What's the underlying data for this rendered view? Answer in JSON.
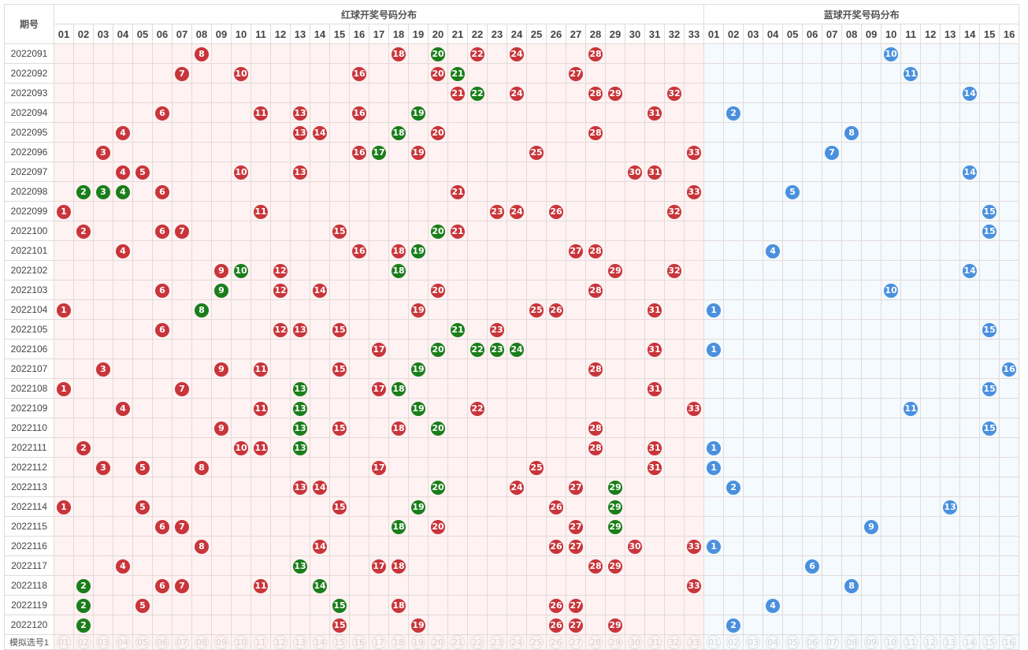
{
  "header": {
    "period_label": "期号",
    "red_title": "红球开奖号码分布",
    "blue_title": "蓝球开奖号码分布"
  },
  "red_numbers": [
    "01",
    "02",
    "03",
    "04",
    "05",
    "06",
    "07",
    "08",
    "09",
    "10",
    "11",
    "12",
    "13",
    "14",
    "15",
    "16",
    "17",
    "18",
    "19",
    "20",
    "21",
    "22",
    "23",
    "24",
    "25",
    "26",
    "27",
    "28",
    "29",
    "30",
    "31",
    "32",
    "33"
  ],
  "blue_numbers": [
    "01",
    "02",
    "03",
    "04",
    "05",
    "06",
    "07",
    "08",
    "09",
    "10",
    "11",
    "12",
    "13",
    "14",
    "15",
    "16"
  ],
  "colors": {
    "red_ball": "#c8353a",
    "repeat_ball": "#1a7e1a",
    "blue_ball": "#4a90de"
  },
  "draws": [
    {
      "period": "2022091",
      "red": [
        8,
        18,
        20,
        22,
        24,
        28
      ],
      "green": [
        20
      ],
      "blue": 10
    },
    {
      "period": "2022092",
      "red": [
        7,
        10,
        16,
        20,
        21,
        27
      ],
      "green": [
        21
      ],
      "blue": 11
    },
    {
      "period": "2022093",
      "red": [
        21,
        22,
        24,
        28,
        29,
        32
      ],
      "green": [
        22
      ],
      "blue": 14
    },
    {
      "period": "2022094",
      "red": [
        6,
        11,
        13,
        16,
        19,
        31
      ],
      "green": [
        19
      ],
      "blue": 2
    },
    {
      "period": "2022095",
      "red": [
        4,
        13,
        14,
        18,
        20,
        28
      ],
      "green": [
        18
      ],
      "blue": 8
    },
    {
      "period": "2022096",
      "red": [
        3,
        16,
        17,
        19,
        25,
        33
      ],
      "green": [
        17
      ],
      "blue": 7
    },
    {
      "period": "2022097",
      "red": [
        4,
        5,
        10,
        13,
        30,
        31
      ],
      "green": [],
      "blue": 14
    },
    {
      "period": "2022098",
      "red": [
        2,
        3,
        4,
        6,
        21,
        33
      ],
      "green": [
        2,
        3,
        4
      ],
      "blue": 5
    },
    {
      "period": "2022099",
      "red": [
        1,
        11,
        23,
        24,
        26,
        32
      ],
      "green": [],
      "blue": 15
    },
    {
      "period": "2022100",
      "red": [
        2,
        6,
        7,
        15,
        20,
        21
      ],
      "green": [
        20
      ],
      "blue": 15
    },
    {
      "period": "2022101",
      "red": [
        4,
        16,
        18,
        19,
        27,
        28
      ],
      "green": [
        19
      ],
      "blue": 4
    },
    {
      "period": "2022102",
      "red": [
        9,
        10,
        12,
        18,
        29,
        32
      ],
      "green": [
        10,
        18
      ],
      "blue": 14
    },
    {
      "period": "2022103",
      "red": [
        6,
        9,
        12,
        14,
        20,
        28
      ],
      "green": [
        9
      ],
      "blue": 10
    },
    {
      "period": "2022104",
      "red": [
        1,
        8,
        19,
        25,
        26,
        31
      ],
      "green": [
        8
      ],
      "blue": 1
    },
    {
      "period": "2022105",
      "red": [
        6,
        12,
        13,
        15,
        21,
        23
      ],
      "green": [
        21
      ],
      "blue": 15
    },
    {
      "period": "2022106",
      "red": [
        17,
        20,
        22,
        23,
        24,
        31
      ],
      "green": [
        20,
        22,
        23,
        24
      ],
      "blue": 1
    },
    {
      "period": "2022107",
      "red": [
        3,
        9,
        11,
        15,
        19,
        28
      ],
      "green": [
        19
      ],
      "blue": 16
    },
    {
      "period": "2022108",
      "red": [
        1,
        7,
        13,
        17,
        18,
        31
      ],
      "green": [
        13,
        18
      ],
      "blue": 15
    },
    {
      "period": "2022109",
      "red": [
        4,
        11,
        13,
        19,
        22,
        33
      ],
      "green": [
        13,
        19
      ],
      "blue": 11
    },
    {
      "period": "2022110",
      "red": [
        9,
        13,
        15,
        18,
        20,
        28
      ],
      "green": [
        13,
        20
      ],
      "blue": 15
    },
    {
      "period": "2022111",
      "red": [
        2,
        10,
        11,
        13,
        28,
        31
      ],
      "green": [
        13
      ],
      "blue": 1
    },
    {
      "period": "2022112",
      "red": [
        3,
        5,
        8,
        17,
        25,
        31
      ],
      "green": [],
      "blue": 1
    },
    {
      "period": "2022113",
      "red": [
        13,
        14,
        20,
        24,
        27,
        29
      ],
      "green": [
        20,
        29
      ],
      "blue": 2
    },
    {
      "period": "2022114",
      "red": [
        1,
        5,
        15,
        19,
        26,
        29
      ],
      "green": [
        19,
        29
      ],
      "blue": 13
    },
    {
      "period": "2022115",
      "red": [
        6,
        7,
        18,
        20,
        27,
        29
      ],
      "green": [
        18,
        29
      ],
      "blue": 9
    },
    {
      "period": "2022116",
      "red": [
        8,
        14,
        26,
        27,
        30,
        33
      ],
      "green": [],
      "blue": 1
    },
    {
      "period": "2022117",
      "red": [
        4,
        13,
        17,
        18,
        28,
        29
      ],
      "green": [
        13
      ],
      "blue": 6
    },
    {
      "period": "2022118",
      "red": [
        2,
        6,
        7,
        11,
        14,
        33
      ],
      "green": [
        2,
        14
      ],
      "blue": 8
    },
    {
      "period": "2022119",
      "red": [
        2,
        5,
        15,
        18,
        26,
        27
      ],
      "green": [
        2,
        15
      ],
      "blue": 4
    },
    {
      "period": "2022120",
      "red": [
        2,
        15,
        19,
        26,
        27,
        29
      ],
      "green": [
        2
      ],
      "blue": 2
    }
  ],
  "simulation": {
    "label": "模拟选号1",
    "red": [
      "01",
      "02",
      "03",
      "04",
      "05",
      "06",
      "07",
      "08",
      "09",
      "10",
      "11",
      "12",
      "13",
      "14",
      "15",
      "16",
      "17",
      "18",
      "19",
      "20",
      "21",
      "22",
      "23",
      "24",
      "25",
      "26",
      "27",
      "28",
      "29",
      "30",
      "31",
      "32",
      "33"
    ],
    "blue": [
      "01",
      "02",
      "03",
      "04",
      "05",
      "06",
      "07",
      "08",
      "09",
      "10",
      "11",
      "12",
      "13",
      "14",
      "15",
      "16"
    ]
  }
}
